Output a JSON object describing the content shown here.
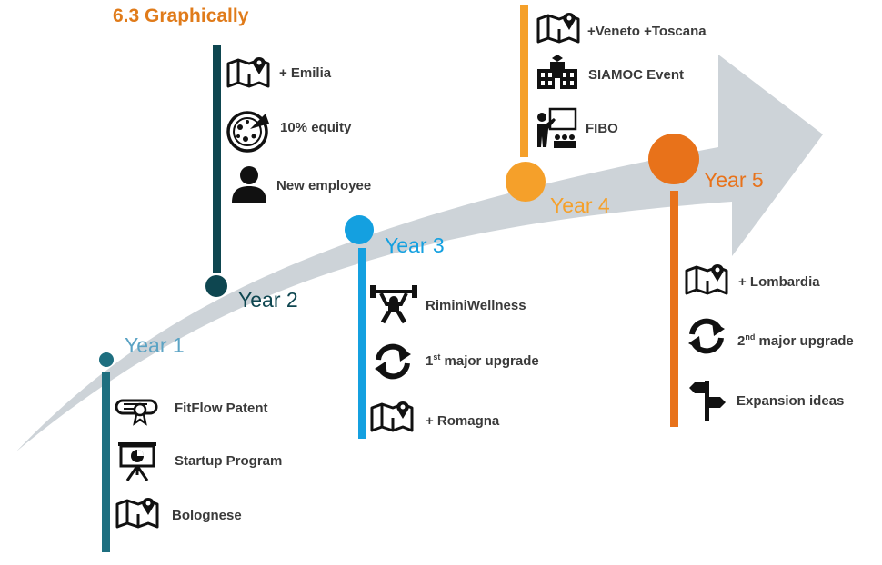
{
  "title": "6.3  Graphically",
  "colors": {
    "y1": "#1E6F80",
    "y1_label": "#5BA3C4",
    "y2": "#0E4650",
    "y3": "#14A0E0",
    "y4": "#F5A02A",
    "y5": "#E8721A",
    "arrow": "#CDD3D8"
  },
  "years": [
    {
      "label": "Year 1",
      "items": [
        {
          "text": "FitFlow Patent",
          "icon": "diploma-icon"
        },
        {
          "text": "Startup Program",
          "icon": "presentation-icon"
        },
        {
          "text": "Bolognese",
          "icon": "map-pin-icon"
        }
      ]
    },
    {
      "label": "Year 2",
      "items": [
        {
          "text": "+ Emilia",
          "icon": "map-pin-icon"
        },
        {
          "text": "10% equity",
          "icon": "pizza-icon"
        },
        {
          "text": "New employee",
          "icon": "person-icon"
        }
      ]
    },
    {
      "label": "Year 3",
      "items": [
        {
          "text": "RiminiWellness",
          "icon": "weightlifter-icon"
        },
        {
          "text_pre": "1",
          "text_sup": "st",
          "text_post": " major upgrade",
          "icon": "refresh-icon"
        },
        {
          "text": "+ Romagna",
          "icon": "map-pin-icon"
        }
      ]
    },
    {
      "label": "Year 4",
      "items": [
        {
          "text": "+Veneto +Toscana",
          "icon": "map-pin-icon"
        },
        {
          "text": "SIAMOC Event",
          "icon": "building-icon"
        },
        {
          "text": "FIBO",
          "icon": "teacher-icon"
        }
      ]
    },
    {
      "label": "Year 5",
      "items": [
        {
          "text": "+ Lombardia",
          "icon": "map-pin-icon"
        },
        {
          "text_pre": "2",
          "text_sup": "nd",
          "text_post": " major upgrade",
          "icon": "refresh-icon"
        },
        {
          "text": "Expansion ideas",
          "icon": "signpost-icon"
        }
      ]
    }
  ]
}
